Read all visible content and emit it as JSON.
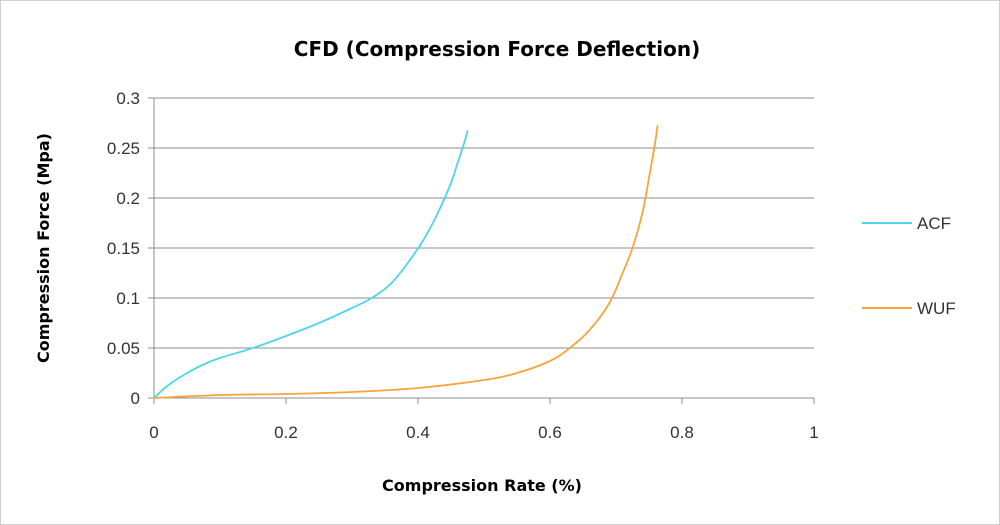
{
  "chart_data": {
    "type": "line",
    "title": "CFD (Compression Force Deflection)",
    "xlabel": "Compression Rate (%)",
    "ylabel": "Compression Force (Mpa)",
    "xlim": [
      0,
      1
    ],
    "ylim": [
      0,
      0.3
    ],
    "x_ticks": [
      "0",
      "0.2",
      "0.4",
      "0.6",
      "0.8",
      "1"
    ],
    "y_ticks": [
      "0",
      "0.05",
      "0.1",
      "0.15",
      "0.2",
      "0.25",
      "0.3"
    ],
    "grid": "horizontal",
    "legend_position": "right",
    "series": [
      {
        "name": "ACF",
        "color": "#4fd4ea",
        "points": [
          [
            0,
            0
          ],
          [
            0.02,
            0.012
          ],
          [
            0.05,
            0.025
          ],
          [
            0.08,
            0.035
          ],
          [
            0.1,
            0.04
          ],
          [
            0.15,
            0.05
          ],
          [
            0.2,
            0.062
          ],
          [
            0.25,
            0.075
          ],
          [
            0.3,
            0.09
          ],
          [
            0.33,
            0.1
          ],
          [
            0.36,
            0.115
          ],
          [
            0.39,
            0.14
          ],
          [
            0.41,
            0.16
          ],
          [
            0.43,
            0.185
          ],
          [
            0.45,
            0.215
          ],
          [
            0.46,
            0.235
          ],
          [
            0.47,
            0.255
          ],
          [
            0.475,
            0.267
          ]
        ]
      },
      {
        "name": "WUF",
        "color": "#f7a53b",
        "points": [
          [
            0,
            0
          ],
          [
            0.1,
            0.003
          ],
          [
            0.2,
            0.004
          ],
          [
            0.3,
            0.006
          ],
          [
            0.4,
            0.01
          ],
          [
            0.5,
            0.018
          ],
          [
            0.55,
            0.025
          ],
          [
            0.6,
            0.037
          ],
          [
            0.63,
            0.05
          ],
          [
            0.66,
            0.068
          ],
          [
            0.69,
            0.095
          ],
          [
            0.71,
            0.125
          ],
          [
            0.725,
            0.15
          ],
          [
            0.74,
            0.185
          ],
          [
            0.75,
            0.22
          ],
          [
            0.758,
            0.25
          ],
          [
            0.763,
            0.272
          ]
        ]
      }
    ]
  }
}
